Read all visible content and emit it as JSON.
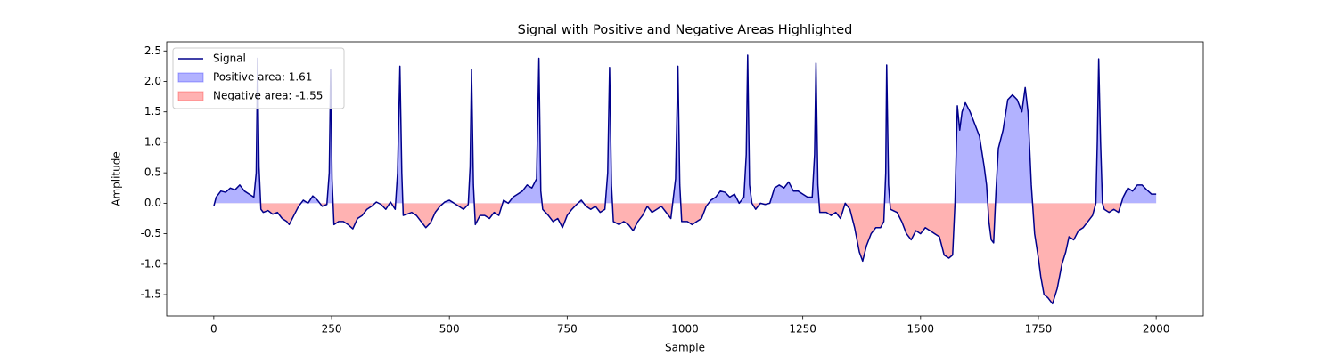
{
  "chart_data": {
    "type": "line",
    "title": "Signal with Positive and Negative Areas Highlighted",
    "x_label": "Sample",
    "y_label": "Amplitude",
    "x": [
      0,
      5,
      15,
      25,
      35,
      45,
      55,
      65,
      75,
      85,
      90,
      93,
      96,
      100,
      105,
      115,
      125,
      135,
      145,
      155,
      160,
      170,
      180,
      190,
      200,
      210,
      220,
      230,
      240,
      245,
      248,
      251,
      255,
      265,
      275,
      285,
      295,
      305,
      315,
      325,
      335,
      345,
      355,
      365,
      375,
      385,
      390,
      395,
      399,
      402,
      410,
      420,
      430,
      440,
      450,
      460,
      470,
      480,
      490,
      500,
      510,
      520,
      530,
      540,
      544,
      547,
      551,
      555,
      565,
      575,
      585,
      595,
      605,
      615,
      625,
      635,
      645,
      655,
      665,
      675,
      685,
      690,
      694,
      698,
      710,
      720,
      730,
      740,
      750,
      760,
      770,
      780,
      790,
      800,
      810,
      820,
      830,
      836,
      840,
      844,
      848,
      860,
      870,
      880,
      890,
      900,
      910,
      920,
      930,
      940,
      950,
      960,
      970,
      980,
      985,
      989,
      993,
      1005,
      1015,
      1025,
      1035,
      1045,
      1055,
      1065,
      1075,
      1085,
      1095,
      1105,
      1115,
      1125,
      1130,
      1133,
      1137,
      1142,
      1150,
      1160,
      1170,
      1180,
      1190,
      1200,
      1210,
      1220,
      1230,
      1240,
      1250,
      1260,
      1270,
      1275,
      1278,
      1282,
      1286,
      1300,
      1310,
      1320,
      1330,
      1340,
      1350,
      1360,
      1370,
      1377,
      1385,
      1395,
      1405,
      1415,
      1422,
      1426,
      1428,
      1432,
      1436,
      1450,
      1460,
      1470,
      1480,
      1490,
      1500,
      1510,
      1520,
      1530,
      1540,
      1550,
      1560,
      1568,
      1573,
      1578,
      1583,
      1588,
      1595,
      1605,
      1615,
      1625,
      1635,
      1640,
      1645,
      1650,
      1655,
      1660,
      1665,
      1675,
      1685,
      1695,
      1705,
      1715,
      1722,
      1728,
      1735,
      1742,
      1750,
      1755,
      1762,
      1770,
      1780,
      1790,
      1800,
      1808,
      1815,
      1825,
      1835,
      1845,
      1855,
      1865,
      1872,
      1875,
      1878,
      1882,
      1886,
      1890,
      1900,
      1910,
      1920,
      1930,
      1940,
      1950,
      1960,
      1970,
      1980,
      1990,
      2000
    ],
    "series": [
      {
        "name": "Signal",
        "color": "#00008b",
        "values": [
          -0.05,
          0.1,
          0.2,
          0.18,
          0.25,
          0.22,
          0.3,
          0.2,
          0.15,
          0.1,
          0.5,
          2.38,
          0.6,
          -0.1,
          -0.15,
          -0.12,
          -0.18,
          -0.15,
          -0.25,
          -0.3,
          -0.35,
          -0.2,
          -0.05,
          0.05,
          0.0,
          0.12,
          0.05,
          -0.05,
          -0.02,
          0.5,
          2.2,
          0.4,
          -0.35,
          -0.3,
          -0.3,
          -0.35,
          -0.42,
          -0.25,
          -0.2,
          -0.1,
          -0.05,
          0.02,
          -0.02,
          -0.1,
          0.02,
          -0.1,
          0.5,
          2.25,
          0.5,
          -0.2,
          -0.18,
          -0.15,
          -0.2,
          -0.3,
          -0.4,
          -0.32,
          -0.15,
          -0.05,
          0.02,
          0.05,
          0.0,
          -0.05,
          -0.1,
          -0.02,
          0.6,
          2.2,
          0.3,
          -0.35,
          -0.2,
          -0.2,
          -0.25,
          -0.15,
          -0.2,
          0.05,
          0.0,
          0.1,
          0.15,
          0.2,
          0.3,
          0.25,
          0.4,
          2.38,
          0.2,
          -0.1,
          -0.2,
          -0.3,
          -0.25,
          -0.4,
          -0.2,
          -0.1,
          -0.02,
          0.05,
          -0.05,
          -0.1,
          -0.05,
          -0.15,
          -0.1,
          0.5,
          2.23,
          0.3,
          -0.3,
          -0.35,
          -0.3,
          -0.35,
          -0.45,
          -0.3,
          -0.2,
          -0.05,
          -0.15,
          -0.1,
          -0.05,
          -0.15,
          -0.25,
          0.4,
          2.25,
          0.3,
          -0.3,
          -0.3,
          -0.35,
          -0.3,
          -0.25,
          -0.05,
          0.05,
          0.1,
          0.2,
          0.18,
          0.1,
          0.15,
          0.0,
          0.1,
          0.8,
          2.43,
          0.3,
          0.0,
          -0.1,
          0.0,
          -0.02,
          0.0,
          0.25,
          0.3,
          0.25,
          0.35,
          0.2,
          0.2,
          0.15,
          0.1,
          0.1,
          0.8,
          2.3,
          0.3,
          -0.15,
          -0.15,
          -0.2,
          -0.15,
          -0.25,
          0.0,
          -0.1,
          -0.4,
          -0.8,
          -0.95,
          -0.7,
          -0.5,
          -0.4,
          -0.4,
          -0.3,
          0.5,
          2.27,
          0.3,
          -0.1,
          -0.15,
          -0.3,
          -0.5,
          -0.6,
          -0.45,
          -0.5,
          -0.4,
          -0.45,
          -0.5,
          -0.55,
          -0.85,
          -0.9,
          -0.85,
          0.0,
          1.6,
          1.2,
          1.5,
          1.65,
          1.5,
          1.3,
          1.1,
          0.6,
          0.3,
          -0.3,
          -0.6,
          -0.65,
          0.2,
          0.9,
          1.2,
          1.7,
          1.78,
          1.7,
          1.5,
          1.9,
          1.5,
          0.3,
          -0.5,
          -0.9,
          -1.2,
          -1.5,
          -1.55,
          -1.65,
          -1.4,
          -1.0,
          -0.8,
          -0.55,
          -0.6,
          -0.45,
          -0.4,
          -0.3,
          -0.2,
          0.0,
          1.0,
          2.37,
          1.0,
          0.0,
          -0.1,
          -0.15,
          -0.1,
          -0.15,
          0.1,
          0.25,
          0.2,
          0.3,
          0.3,
          0.22,
          0.15,
          0.15
        ]
      }
    ],
    "fills": [
      {
        "name": "Positive area: 1.61",
        "color": "#0000ff",
        "opacity": 0.3
      },
      {
        "name": "Negative area: -1.55",
        "color": "#ff0000",
        "opacity": 0.3
      }
    ],
    "xlim": [
      -100,
      2100
    ],
    "ylim": [
      -1.85,
      2.65
    ],
    "xticks": [
      0,
      250,
      500,
      750,
      1000,
      1250,
      1500,
      1750,
      2000
    ],
    "yticks": [
      -1.5,
      {
        "value": -1.0,
        "label": "-1.0"
      },
      -0.5,
      {
        "value": 0,
        "label": "0.0"
      },
      0.5,
      {
        "value": 1,
        "label": "1.0"
      },
      1.5,
      {
        "value": 2,
        "label": "2.0"
      },
      2.5
    ],
    "legend": "upper left",
    "grid": false
  }
}
